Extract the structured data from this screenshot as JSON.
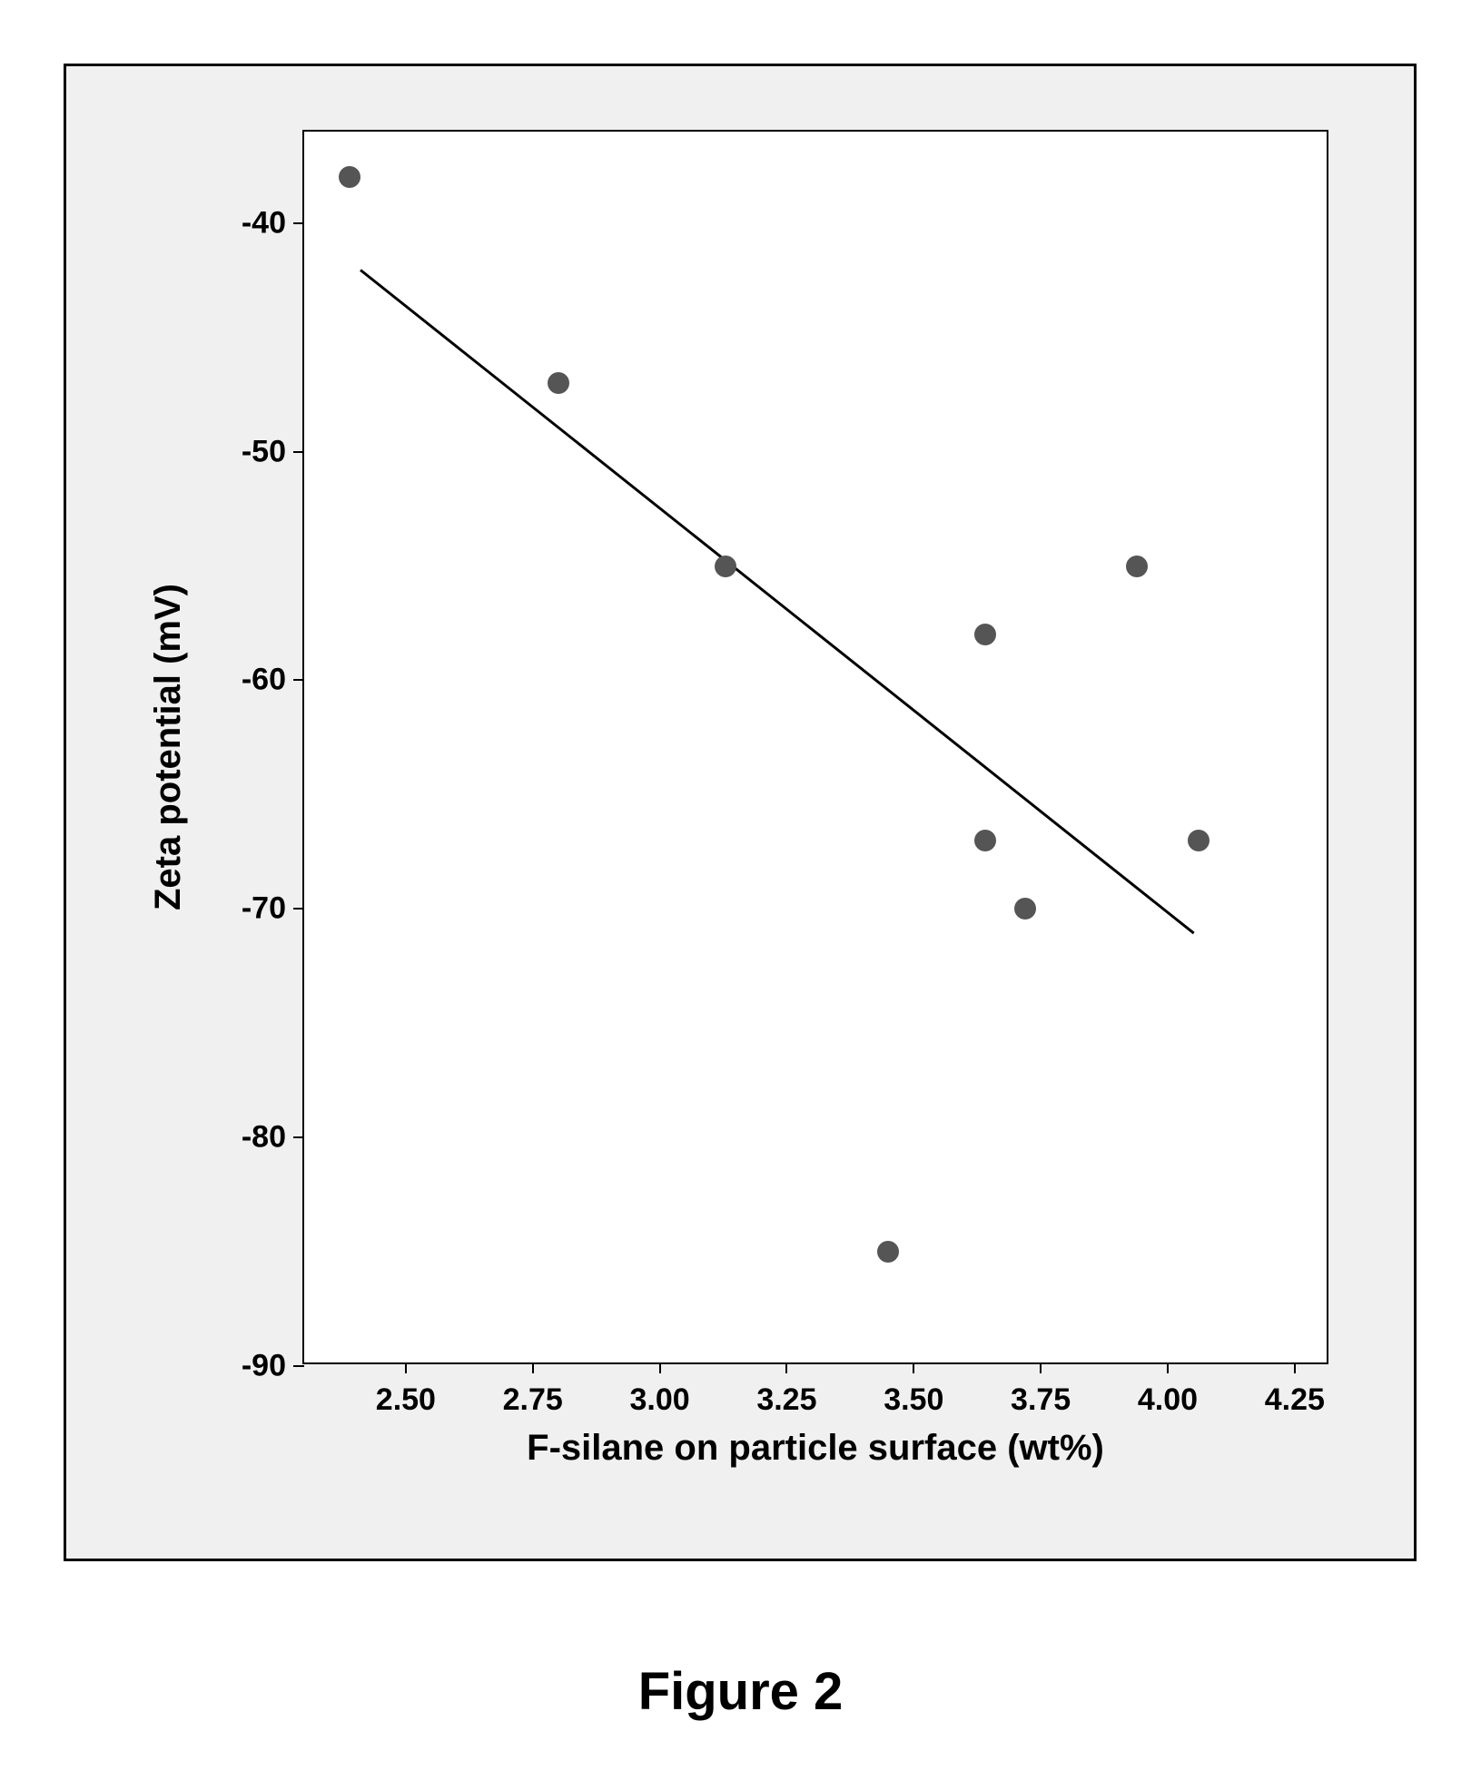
{
  "chart": {
    "type": "scatter",
    "background_color": "#ffffff",
    "frame_background": "#f0f0f0",
    "border_color": "#000000",
    "xlabel": "F-silane on particle surface (wt%)",
    "ylabel": "Zeta potential (mV)",
    "label_fontsize": 40,
    "tick_fontsize": 34,
    "xlim": [
      2.3,
      4.32
    ],
    "ylim": [
      -90,
      -36
    ],
    "xticks": [
      2.5,
      2.75,
      3.0,
      3.25,
      3.5,
      3.75,
      4.0,
      4.25
    ],
    "yticks": [
      -40,
      -50,
      -60,
      -70,
      -80,
      -90
    ],
    "xtick_labels": [
      "2.50",
      "2.75",
      "3.00",
      "3.25",
      "3.50",
      "3.75",
      "4.00",
      "4.25"
    ],
    "ytick_labels": [
      "-40",
      "-50",
      "-60",
      "-70",
      "-80",
      "-90"
    ],
    "points": [
      {
        "x": 2.39,
        "y": -38
      },
      {
        "x": 2.8,
        "y": -47
      },
      {
        "x": 3.13,
        "y": -55
      },
      {
        "x": 3.45,
        "y": -85
      },
      {
        "x": 3.64,
        "y": -58
      },
      {
        "x": 3.64,
        "y": -67
      },
      {
        "x": 3.72,
        "y": -70
      },
      {
        "x": 3.94,
        "y": -55
      },
      {
        "x": 4.06,
        "y": -67
      }
    ],
    "point_color": "#555555",
    "point_size": 24,
    "trend_line": {
      "x1": 2.41,
      "y1": -42,
      "x2": 4.05,
      "y2": -71,
      "color": "#000000",
      "width": 3
    }
  },
  "caption": "Figure 2",
  "caption_fontsize": 58
}
